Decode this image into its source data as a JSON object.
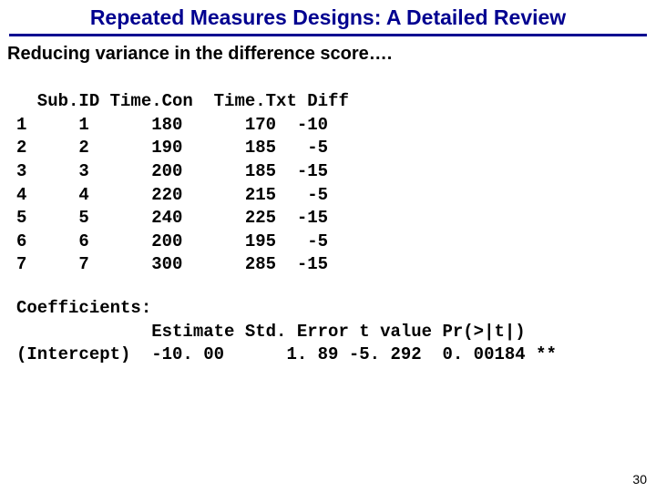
{
  "colors": {
    "title": "#000090",
    "rule": "#000090",
    "subtitle": "#000000",
    "mono": "#000000",
    "pagenum": "#000000"
  },
  "title": "Repeated Measures Designs: A Detailed Review",
  "subtitle": "Reducing variance in the difference score….",
  "table": {
    "headers": [
      "Sub.ID",
      "Time.Con",
      "Time.Txt",
      "Diff"
    ],
    "rows": [
      {
        "idx": "1",
        "sub": "1",
        "con": "180",
        "txt": "170",
        "diff": "-10"
      },
      {
        "idx": "2",
        "sub": "2",
        "con": "190",
        "txt": "185",
        "diff": "-5"
      },
      {
        "idx": "3",
        "sub": "3",
        "con": "200",
        "txt": "185",
        "diff": "-15"
      },
      {
        "idx": "4",
        "sub": "4",
        "con": "220",
        "txt": "215",
        "diff": "-5"
      },
      {
        "idx": "5",
        "sub": "5",
        "con": "240",
        "txt": "225",
        "diff": "-15"
      },
      {
        "idx": "6",
        "sub": "6",
        "con": "200",
        "txt": "195",
        "diff": "-5"
      },
      {
        "idx": "7",
        "sub": "7",
        "con": "300",
        "txt": "285",
        "diff": "-15"
      }
    ]
  },
  "coefficients": {
    "heading": "Coefficients:",
    "col_headers": [
      "Estimate",
      "Std. Error",
      "t value",
      "Pr(>|t|)"
    ],
    "row_label": "(Intercept)",
    "estimate": "-10. 00",
    "stderr": "1. 89",
    "tvalue": "-5. 292",
    "pvalue": "0. 00184 **"
  },
  "page_number": "30"
}
